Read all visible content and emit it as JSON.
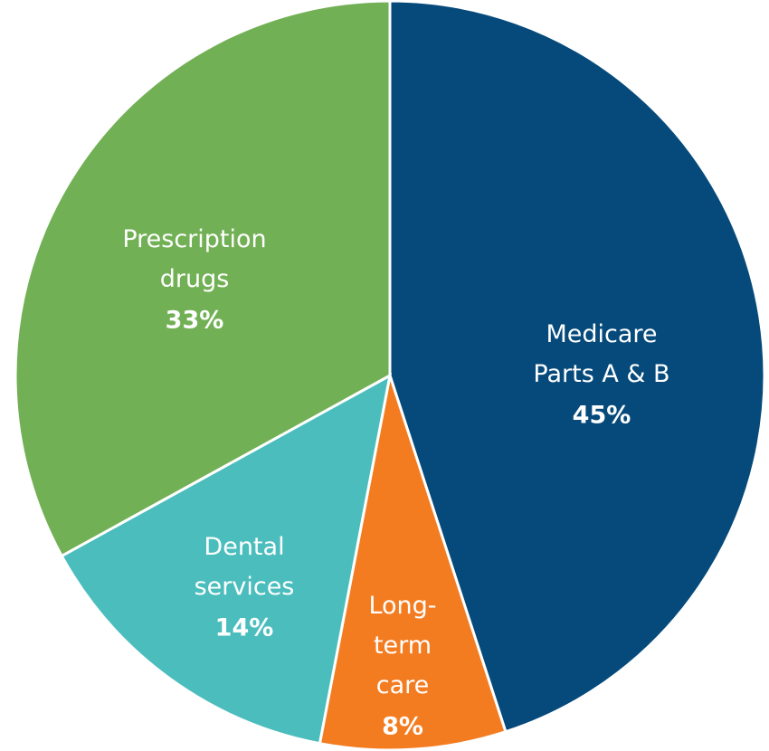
{
  "chart_data": {
    "type": "pie",
    "categories": [
      "Medicare Parts A & B",
      "Long-term care",
      "Dental services",
      "Prescription drugs"
    ],
    "values": [
      45,
      8,
      14,
      33
    ],
    "value_labels": [
      "45%",
      "8%",
      "14%",
      "33%"
    ],
    "colors": [
      "#054a7b",
      "#f47c20",
      "#4bbdbd",
      "#72b055"
    ]
  }
}
